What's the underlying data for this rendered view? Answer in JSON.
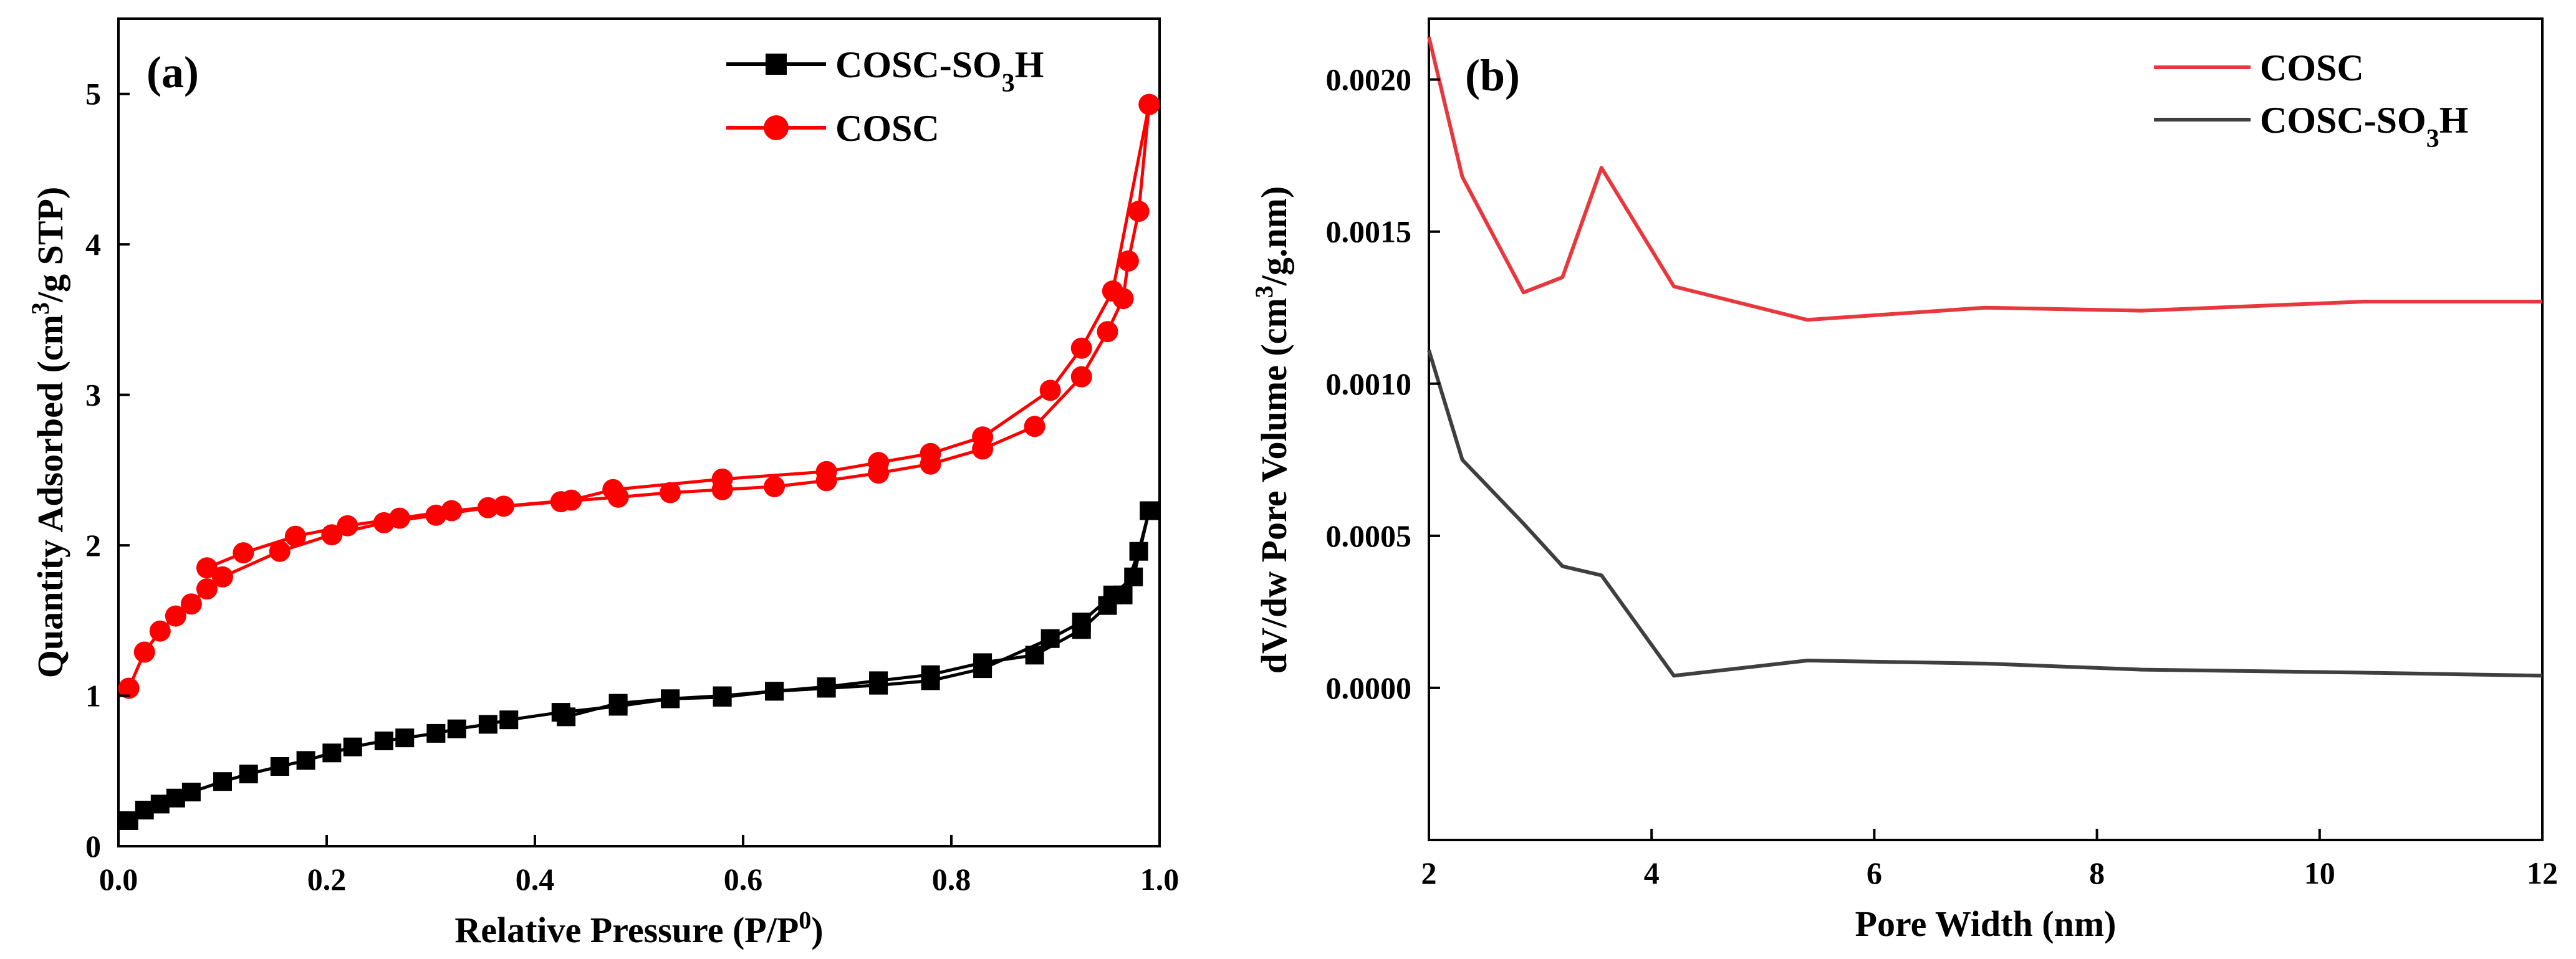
{
  "chart_data": [
    {
      "type": "line",
      "panel_label": "(a)",
      "xlabel": "Relative Pressure (P/P",
      "xlabel_sup": "0",
      "xlabel_end": ")",
      "ylabel": "Quantity Adsorbed (cm",
      "ylabel_sup": "3",
      "ylabel_end": "/g STP)",
      "xlim": [
        0,
        1.0
      ],
      "ylim": [
        0,
        5.5
      ],
      "x_ticks": [
        "0.0",
        "0.2",
        "0.4",
        "0.6",
        "0.8",
        "1.0"
      ],
      "y_ticks": [
        "0",
        "1",
        "2",
        "3",
        "4",
        "5"
      ],
      "legend_position": "top-right",
      "series": [
        {
          "name": "COSC-SO",
          "name_sub": "3",
          "name_end": "H",
          "color": "#000000",
          "marker": "square",
          "adsorption": [
            [
              0.01,
              0.17
            ],
            [
              0.025,
              0.24
            ],
            [
              0.04,
              0.28
            ],
            [
              0.055,
              0.32
            ],
            [
              0.07,
              0.36
            ],
            [
              0.1,
              0.43
            ],
            [
              0.125,
              0.48
            ],
            [
              0.155,
              0.53
            ],
            [
              0.18,
              0.57
            ],
            [
              0.205,
              0.62
            ],
            [
              0.225,
              0.66
            ],
            [
              0.255,
              0.7
            ],
            [
              0.275,
              0.72
            ],
            [
              0.305,
              0.75
            ],
            [
              0.325,
              0.78
            ],
            [
              0.355,
              0.81
            ],
            [
              0.375,
              0.84
            ],
            [
              0.425,
              0.89
            ],
            [
              0.48,
              0.93
            ],
            [
              0.53,
              0.98
            ],
            [
              0.58,
              1.0
            ],
            [
              0.63,
              1.03
            ],
            [
              0.68,
              1.06
            ],
            [
              0.73,
              1.1
            ],
            [
              0.78,
              1.14
            ],
            [
              0.83,
              1.22
            ],
            [
              0.88,
              1.27
            ],
            [
              0.925,
              1.44
            ],
            [
              0.95,
              1.6
            ],
            [
              0.965,
              1.67
            ],
            [
              0.98,
              1.96
            ],
            [
              0.99,
              2.23
            ]
          ],
          "desorption": [
            [
              0.99,
              2.23
            ],
            [
              0.975,
              1.79
            ],
            [
              0.955,
              1.67
            ],
            [
              0.925,
              1.49
            ],
            [
              0.895,
              1.38
            ],
            [
              0.83,
              1.18
            ],
            [
              0.78,
              1.1
            ],
            [
              0.73,
              1.07
            ],
            [
              0.68,
              1.05
            ],
            [
              0.63,
              1.03
            ],
            [
              0.58,
              0.99
            ],
            [
              0.53,
              0.98
            ],
            [
              0.48,
              0.95
            ],
            [
              0.43,
              0.86
            ]
          ]
        },
        {
          "name": "COSC",
          "color": "#ff0000",
          "marker": "circle",
          "adsorption": [
            [
              0.01,
              1.05
            ],
            [
              0.025,
              1.29
            ],
            [
              0.04,
              1.43
            ],
            [
              0.055,
              1.53
            ],
            [
              0.07,
              1.61
            ],
            [
              0.085,
              1.71
            ],
            [
              0.1,
              1.79
            ],
            [
              0.155,
              1.96
            ],
            [
              0.205,
              2.07
            ],
            [
              0.255,
              2.15
            ],
            [
              0.305,
              2.2
            ],
            [
              0.355,
              2.25
            ],
            [
              0.425,
              2.29
            ],
            [
              0.48,
              2.32
            ],
            [
              0.53,
              2.35
            ],
            [
              0.58,
              2.37
            ],
            [
              0.63,
              2.39
            ],
            [
              0.68,
              2.43
            ],
            [
              0.73,
              2.48
            ],
            [
              0.78,
              2.54
            ],
            [
              0.83,
              2.64
            ],
            [
              0.88,
              2.79
            ],
            [
              0.925,
              3.12
            ],
            [
              0.95,
              3.42
            ],
            [
              0.965,
              3.64
            ],
            [
              0.97,
              3.89
            ],
            [
              0.98,
              4.22
            ],
            [
              0.99,
              4.93
            ]
          ],
          "desorption": [
            [
              0.99,
              4.93
            ],
            [
              0.955,
              3.69
            ],
            [
              0.925,
              3.31
            ],
            [
              0.895,
              3.03
            ],
            [
              0.83,
              2.72
            ],
            [
              0.78,
              2.61
            ],
            [
              0.73,
              2.55
            ],
            [
              0.68,
              2.49
            ],
            [
              0.58,
              2.44
            ],
            [
              0.475,
              2.37
            ],
            [
              0.435,
              2.3
            ],
            [
              0.37,
              2.26
            ],
            [
              0.32,
              2.23
            ],
            [
              0.27,
              2.18
            ],
            [
              0.22,
              2.13
            ],
            [
              0.17,
              2.06
            ],
            [
              0.12,
              1.95
            ],
            [
              0.085,
              1.85
            ]
          ]
        }
      ]
    },
    {
      "type": "line",
      "panel_label": "(b)",
      "xlabel": "Pore Width (nm)",
      "ylabel": "dV/dw Pore Volume (cm",
      "ylabel_sup": "3",
      "ylabel_end": "/g.nm)",
      "xlim": [
        2,
        12
      ],
      "ylim": [
        -0.0005,
        0.0022
      ],
      "x_ticks": [
        "2",
        "4",
        "6",
        "8",
        "10",
        "12"
      ],
      "y_ticks": [
        "0.0000",
        "0.0005",
        "0.0010",
        "0.0015",
        "0.0020"
      ],
      "legend_position": "top-right",
      "series": [
        {
          "name": "COSC",
          "color": "#e8383d",
          "points": [
            [
              2.0,
              0.00214
            ],
            [
              2.3,
              0.00168
            ],
            [
              2.85,
              0.0013
            ],
            [
              3.2,
              0.00135
            ],
            [
              3.55,
              0.00171
            ],
            [
              4.2,
              0.00132
            ],
            [
              5.4,
              0.00121
            ],
            [
              7.0,
              0.00125
            ],
            [
              8.4,
              0.00124
            ],
            [
              10.4,
              0.00127
            ],
            [
              12.0,
              0.00127
            ]
          ]
        },
        {
          "name": "COSC-SO",
          "name_sub": "3",
          "name_end": "H",
          "color": "#3f3f3f",
          "points": [
            [
              2.0,
              0.00111
            ],
            [
              2.3,
              0.00075
            ],
            [
              2.85,
              0.00054
            ],
            [
              3.2,
              0.0004
            ],
            [
              3.55,
              0.00037
            ],
            [
              4.2,
              4e-05
            ],
            [
              5.4,
              9e-05
            ],
            [
              7.0,
              8e-05
            ],
            [
              8.4,
              6e-05
            ],
            [
              10.4,
              5e-05
            ],
            [
              12.0,
              4e-05
            ]
          ]
        }
      ]
    }
  ]
}
